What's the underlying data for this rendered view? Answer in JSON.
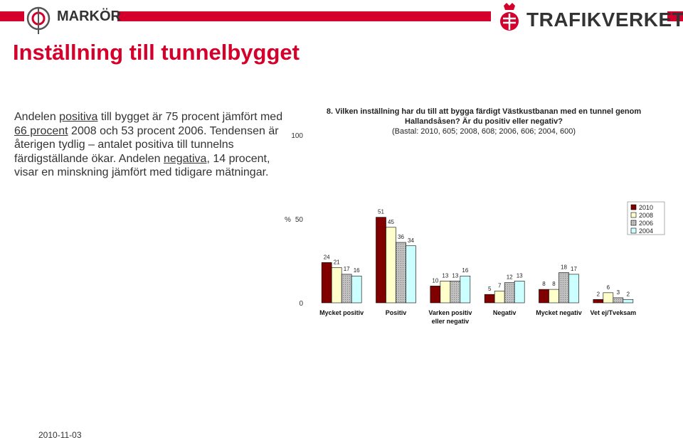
{
  "header": {
    "left_brand": "MARKÖR",
    "right_brand": "TRAFIKVERKET",
    "accent_color": "#d4002b"
  },
  "title": "Inställning till tunnelbygget",
  "body": {
    "p1": "Andelen ",
    "u1": "positiva",
    "p2": " till bygget är 75 procent jämfört med ",
    "u2": "66 procent",
    "p3": " 2008 och 53 procent 2006. Tendensen är återigen tydlig – antalet positiva till tunnelns färdigställande ökar. Andelen ",
    "u3": "negativa",
    "p4": ", 14 procent, visar en minskning jämfört med tidigare mätningar."
  },
  "question": {
    "text": "8. Vilken inställning har du till att bygga färdigt Västkustbanan med en tunnel genom Hallandsåsen? Är du positiv eller negativ?",
    "base": "(Bastal: 2010, 605; 2008, 608; 2006, 606; 2004, 600)"
  },
  "chart_data": {
    "type": "bar",
    "categories": [
      "Mycket positiv",
      "Positiv",
      "Varken positiv eller negativ",
      "Negativ",
      "Mycket negativ",
      "Vet ej/Tveksam"
    ],
    "series": [
      {
        "name": "2010",
        "values": [
          24,
          51,
          10,
          5,
          8,
          2
        ],
        "color": "#800000",
        "pattern": "solid"
      },
      {
        "name": "2008",
        "values": [
          21,
          45,
          13,
          7,
          8,
          6
        ],
        "color": "#ffffcc",
        "pattern": "solid"
      },
      {
        "name": "2006",
        "values": [
          17,
          36,
          13,
          12,
          18,
          3
        ],
        "color": "#c0c0c0",
        "pattern": "dotted"
      },
      {
        "name": "2004",
        "values": [
          16,
          34,
          16,
          13,
          17,
          2
        ],
        "color": "#ccffff",
        "pattern": "solid"
      }
    ],
    "ylabel": "%",
    "ylim": [
      0,
      100
    ],
    "yticks": [
      0,
      50,
      100
    ],
    "legend": "top-right",
    "grid": false
  },
  "footer": {
    "date": "2010-11-03"
  }
}
